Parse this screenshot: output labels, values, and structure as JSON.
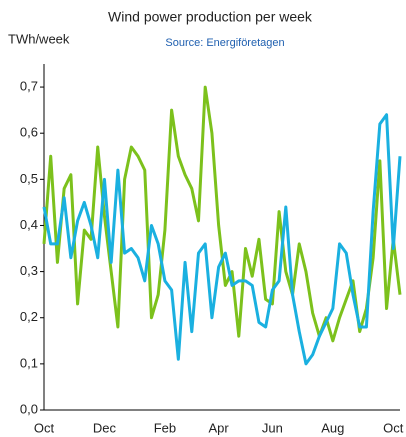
{
  "chart_data": {
    "type": "line",
    "title": "Wind power production per week",
    "subtitle": "Source: Energiföretagen",
    "y_label": "TWh/week",
    "categories": [
      "Oct",
      null,
      null,
      null,
      null,
      null,
      null,
      null,
      null,
      "Dec",
      null,
      null,
      null,
      null,
      null,
      null,
      null,
      null,
      "Feb",
      null,
      null,
      null,
      null,
      null,
      null,
      null,
      "Apr",
      null,
      null,
      null,
      null,
      null,
      null,
      null,
      "Jun",
      null,
      null,
      null,
      null,
      null,
      null,
      null,
      null,
      "Aug",
      null,
      null,
      null,
      null,
      null,
      null,
      null,
      null,
      "Oct",
      null
    ],
    "series": [
      {
        "color": "#7cc11c",
        "values": [
          0.36,
          0.55,
          0.32,
          0.48,
          0.51,
          0.23,
          0.39,
          0.37,
          0.57,
          0.42,
          0.3,
          0.18,
          0.5,
          0.57,
          0.55,
          0.52,
          0.2,
          0.25,
          0.39,
          0.65,
          0.55,
          0.51,
          0.48,
          0.41,
          0.7,
          0.6,
          0.4,
          0.27,
          0.3,
          0.16,
          0.35,
          0.29,
          0.37,
          0.24,
          0.23,
          0.43,
          0.3,
          0.25,
          0.36,
          0.3,
          0.21,
          0.16,
          0.2,
          0.15,
          0.2,
          0.24,
          0.28,
          0.17,
          0.22,
          0.33,
          0.54,
          0.22,
          0.37,
          0.25
        ]
      },
      {
        "color": "#1ab0e0",
        "values": [
          0.44,
          0.36,
          0.36,
          0.46,
          0.33,
          0.41,
          0.45,
          0.4,
          0.33,
          0.5,
          0.32,
          0.52,
          0.34,
          0.35,
          0.33,
          0.28,
          0.4,
          0.36,
          0.28,
          0.26,
          0.11,
          0.32,
          0.17,
          0.34,
          0.36,
          0.2,
          0.31,
          0.34,
          0.27,
          0.28,
          0.28,
          0.27,
          0.19,
          0.18,
          0.26,
          0.28,
          0.44,
          0.25,
          0.17,
          0.1,
          0.12,
          0.16,
          0.19,
          0.22,
          0.36,
          0.34,
          0.25,
          0.18,
          0.18,
          0.43,
          0.62,
          0.64,
          0.35,
          0.55
        ]
      }
    ],
    "ylim": [
      0,
      0.75
    ],
    "yticks": [
      {
        "value": 0,
        "label": "0,0"
      },
      {
        "value": 0.1,
        "label": "0,1"
      },
      {
        "value": 0.2,
        "label": "0,2"
      },
      {
        "value": 0.3,
        "label": "0,3"
      },
      {
        "value": 0.4,
        "label": "0,4"
      },
      {
        "value": 0.5,
        "label": "0,5"
      },
      {
        "value": 0.6,
        "label": "0,6"
      },
      {
        "value": 0.7,
        "label": "0,7"
      }
    ],
    "grid": false
  }
}
